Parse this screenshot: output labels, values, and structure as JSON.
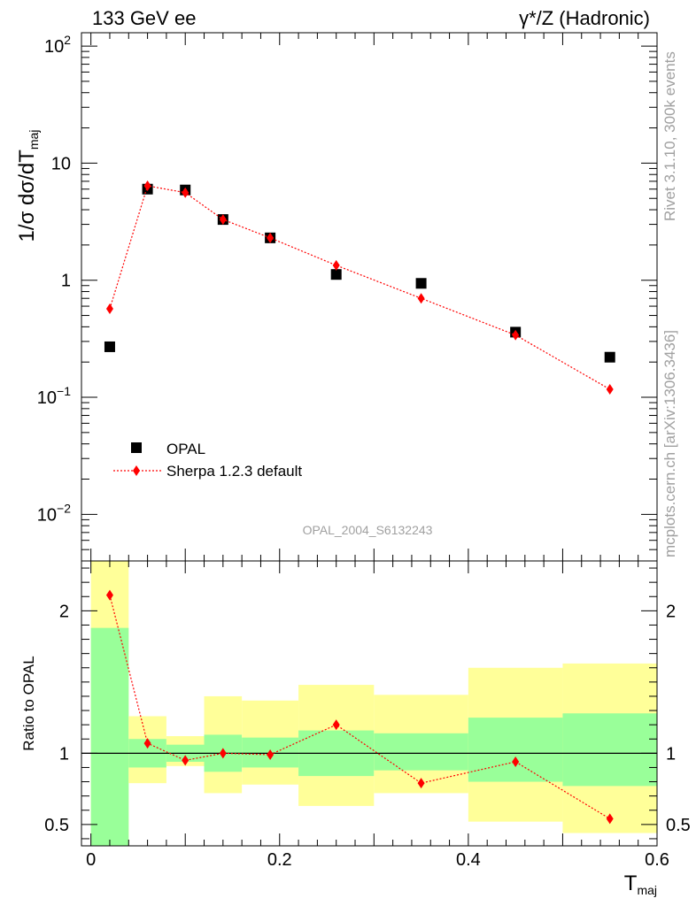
{
  "header": {
    "left": "133 GeV ee",
    "right": "γ*/Z (Hadronic)"
  },
  "side_labels": {
    "rivet": "Rivet 3.1.10,  300k events",
    "mcplots": "mcplots.cern.ch [arXiv:1306.3436]"
  },
  "analysis_id": "OPAL_2004_S6132243",
  "colors": {
    "data": "#000000",
    "mc": "#ff0000",
    "band_inner": "#99ff99",
    "band_outer": "#ffff99"
  },
  "chart_data": [
    {
      "type": "scatter",
      "ylabel": "1/σ dσ/dT_maj",
      "yscale": "log",
      "ylim": [
        0.004,
        130
      ],
      "xlim": [
        -0.01,
        0.6
      ],
      "y_ticks": [
        {
          "v": 0.01,
          "mant": "10",
          "exp": "−2"
        },
        {
          "v": 0.1,
          "mant": "10",
          "exp": "−1"
        },
        {
          "v": 1,
          "mant": "1",
          "exp": ""
        },
        {
          "v": 10,
          "mant": "10",
          "exp": ""
        },
        {
          "v": 100,
          "mant": "10",
          "exp": "2"
        }
      ],
      "legend": {
        "placement": "lower-left",
        "entries": [
          "OPAL",
          "Sherpa 1.2.3 default"
        ]
      },
      "series": [
        {
          "name": "OPAL",
          "x": [
            0.02,
            0.06,
            0.1,
            0.14,
            0.19,
            0.26,
            0.35,
            0.45,
            0.55
          ],
          "y": [
            0.27,
            6.0,
            5.9,
            3.3,
            2.3,
            1.12,
            0.94,
            0.36,
            0.22
          ]
        },
        {
          "name": "Sherpa 1.2.3 default",
          "x": [
            0.02,
            0.06,
            0.1,
            0.14,
            0.19,
            0.26,
            0.35,
            0.45,
            0.55
          ],
          "y": [
            0.57,
            6.4,
            5.6,
            3.3,
            2.3,
            1.34,
            0.7,
            0.34,
            0.117
          ]
        }
      ]
    },
    {
      "type": "line",
      "ylabel": "Ratio to OPAL",
      "xlabel": "T_maj",
      "ylim": [
        0.35,
        2.35
      ],
      "xlim": [
        -0.01,
        0.6
      ],
      "y_ticks": [
        0.5,
        1,
        2
      ],
      "y_tick_labels": [
        "0.5",
        "1",
        "2"
      ],
      "x_ticks": [
        0,
        0.2,
        0.4,
        0.6
      ],
      "x_tick_labels": [
        "0",
        "0.2",
        "0.4",
        "0.6"
      ],
      "bands": [
        {
          "x0": 0.0,
          "x1": 0.04,
          "inner": [
            0.35,
            1.88
          ],
          "outer": [
            0.35,
            2.35
          ]
        },
        {
          "x0": 0.04,
          "x1": 0.08,
          "inner": [
            0.9,
            1.1
          ],
          "outer": [
            0.79,
            1.26
          ]
        },
        {
          "x0": 0.08,
          "x1": 0.12,
          "inner": [
            0.94,
            1.06
          ],
          "outer": [
            0.91,
            1.12
          ]
        },
        {
          "x0": 0.12,
          "x1": 0.16,
          "inner": [
            0.87,
            1.13
          ],
          "outer": [
            0.72,
            1.4
          ]
        },
        {
          "x0": 0.16,
          "x1": 0.22,
          "inner": [
            0.9,
            1.11
          ],
          "outer": [
            0.78,
            1.37
          ]
        },
        {
          "x0": 0.22,
          "x1": 0.3,
          "inner": [
            0.84,
            1.16
          ],
          "outer": [
            0.63,
            1.48
          ]
        },
        {
          "x0": 0.3,
          "x1": 0.4,
          "inner": [
            0.88,
            1.14
          ],
          "outer": [
            0.72,
            1.41
          ]
        },
        {
          "x0": 0.4,
          "x1": 0.5,
          "inner": [
            0.8,
            1.25
          ],
          "outer": [
            0.52,
            1.6
          ]
        },
        {
          "x0": 0.5,
          "x1": 0.6,
          "inner": [
            0.77,
            1.28
          ],
          "outer": [
            0.44,
            1.63
          ]
        }
      ],
      "series": [
        {
          "name": "Sherpa 1.2.3 default",
          "x": [
            0.02,
            0.06,
            0.1,
            0.14,
            0.19,
            0.26,
            0.35,
            0.45,
            0.55
          ],
          "y": [
            2.11,
            1.07,
            0.95,
            1.0,
            0.99,
            1.2,
            0.79,
            0.94,
            0.54
          ]
        }
      ]
    }
  ]
}
